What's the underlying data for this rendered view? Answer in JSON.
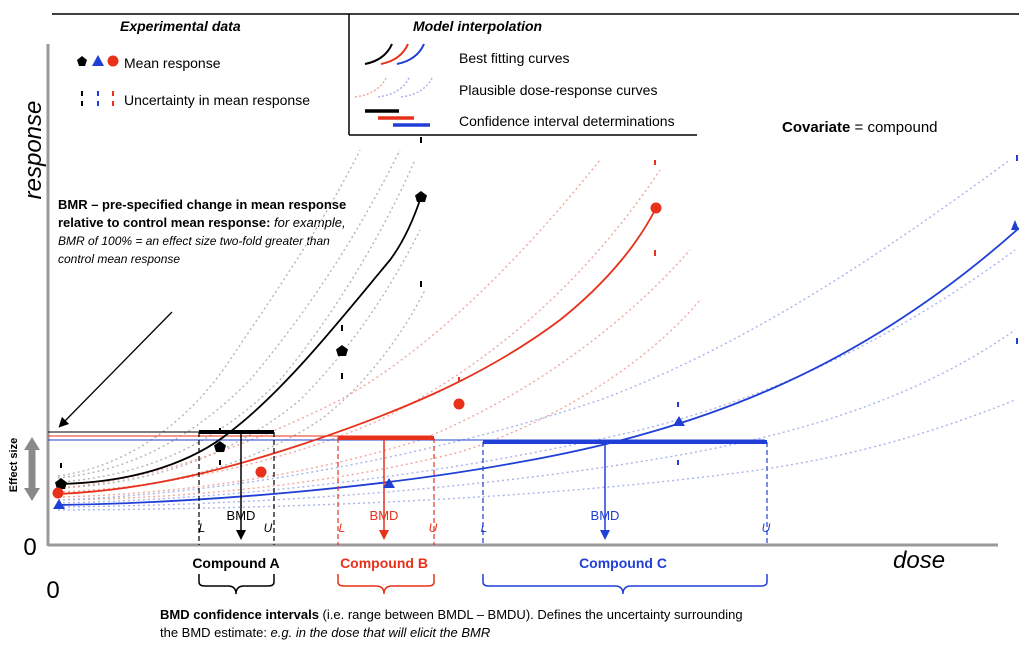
{
  "legend": {
    "experimental_header": "Experimental data",
    "model_header": "Model interpolation",
    "mean_response": "Mean response",
    "uncertainty": "Uncertainty in mean response",
    "best_fit": "Best fitting curves",
    "plausible": "Plausible dose-response curves",
    "ci_determinations": "Confidence interval determinations"
  },
  "covariate": {
    "bold": "Covariate",
    "rest": " = compound"
  },
  "axes": {
    "y_label": "response",
    "x_label": "dose",
    "y_origin": "0",
    "x_origin": "0",
    "effect_size": "Effect size"
  },
  "bmr_note": {
    "line1": "BMR – pre-specified change in mean response",
    "line2_bold": "relative to control mean response:",
    "line2_italic": " for example,",
    "line3": "BMR of 100% = an effect size two-fold greater than",
    "line4": "control mean response"
  },
  "compounds": [
    {
      "name": "Compound A",
      "color": "#000000",
      "bmd_label": "BMD",
      "lower": "L",
      "upper": "U"
    },
    {
      "name": "Compound B",
      "color": "#e8311a",
      "bmd_label": "BMD",
      "lower": "L",
      "upper": "U"
    },
    {
      "name": "Compound C",
      "color": "#1f3fd6",
      "bmd_label": "BMD",
      "lower": "L",
      "upper": "U"
    }
  ],
  "ci_note": {
    "line1_bold": "BMD confidence intervals",
    "line1_rest": " (i.e. range between BMDL – BMDU). Defines the uncertainty surrounding",
    "line2_plain": "the BMD estimate: ",
    "line2_italic": "e.g. in the dose that will elicit the BMR"
  },
  "colors": {
    "black": "#000000",
    "red": "#e8311a",
    "blue": "#1f3fd6",
    "axis": "#9a9a9a",
    "plausible_black": "#b5b5b5",
    "plausible_red": "#f0a89c",
    "plausible_blue": "#a8b4ec"
  }
}
